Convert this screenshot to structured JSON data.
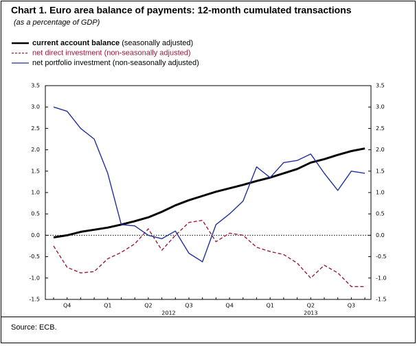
{
  "chart_data": {
    "type": "line",
    "title": "Chart 1. Euro area balance of payments: 12-month cumulated transactions",
    "subtitle": "(as a percentage of GDP)",
    "source": "Source: ECB.",
    "categories": [
      null,
      "Q4",
      null,
      null,
      "Q1",
      null,
      null,
      "Q2",
      null,
      null,
      "Q3",
      null,
      null,
      "Q4",
      null,
      null,
      "Q1",
      null,
      null,
      "Q2",
      null,
      null,
      "Q3",
      null
    ],
    "year_labels": [
      "2012",
      "2013"
    ],
    "series": [
      {
        "name": "current account balance",
        "qualifier": "(seasonally adjusted)",
        "color": "#000000",
        "dashed": false,
        "values": [
          -0.05,
          0.0,
          0.08,
          0.13,
          0.18,
          0.25,
          0.33,
          0.42,
          0.55,
          0.7,
          0.82,
          0.92,
          1.02,
          1.1,
          1.18,
          1.27,
          1.35,
          1.45,
          1.55,
          1.7,
          1.78,
          1.88,
          1.97,
          2.03
        ]
      },
      {
        "name": "net direct investment",
        "qualifier": "(non-seasonally adjusted)",
        "color": "#9b1b3a",
        "dashed": true,
        "values": [
          -0.25,
          -0.75,
          -0.88,
          -0.85,
          -0.55,
          -0.4,
          -0.2,
          0.15,
          -0.35,
          0.0,
          0.3,
          0.35,
          -0.15,
          0.05,
          0.0,
          -0.28,
          -0.38,
          -0.45,
          -0.65,
          -1.0,
          -0.7,
          -0.88,
          -1.2,
          -1.2
        ]
      },
      {
        "name": "net portfolio investment",
        "qualifier": "(non-seasonally adjusted)",
        "color": "#1f2f9e",
        "dashed": false,
        "values": [
          3.0,
          2.9,
          2.5,
          2.25,
          1.45,
          0.25,
          0.22,
          0.0,
          -0.08,
          0.1,
          -0.42,
          -0.62,
          0.25,
          0.5,
          0.8,
          1.6,
          1.35,
          1.7,
          1.75,
          1.9,
          1.45,
          1.05,
          1.5,
          1.45
        ]
      }
    ],
    "ylim": [
      -1.5,
      3.5
    ],
    "yticks": [
      -1.5,
      {
        "value": -1,
        "label": "-1.0"
      },
      -0.5,
      {
        "value": 0,
        "label": "0.0"
      },
      0.5,
      {
        "value": 1,
        "label": "1.0"
      },
      1.5,
      {
        "value": 2,
        "label": "2.0"
      },
      2.5,
      {
        "value": 3,
        "label": "3.0"
      },
      3.5
    ],
    "y2lim": [
      -1.5,
      3.5
    ],
    "y2ticks": [
      -1.5,
      {
        "value": -1,
        "label": "-1.0"
      },
      -0.5,
      {
        "value": 0,
        "label": "0.0"
      },
      0.5,
      {
        "value": 1,
        "label": "1.0"
      },
      1.5,
      {
        "value": 2,
        "label": "2.0"
      },
      2.5,
      {
        "value": 3,
        "label": "3.0"
      },
      3.5
    ],
    "grid": false
  }
}
